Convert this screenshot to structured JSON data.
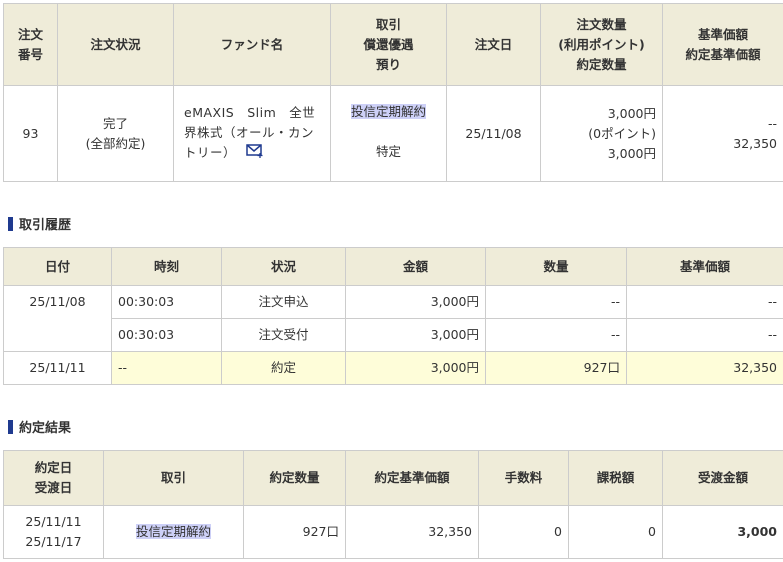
{
  "order": {
    "headers": [
      "注文\n番号",
      "注文状況",
      "ファンド名",
      "取引\n償還優遇\n預り",
      "注文日",
      "注文数量\n(利用ポイント)\n約定数量",
      "基準価額\n約定基準価額"
    ],
    "row": {
      "number": "93",
      "status": "完了",
      "status_detail": "(全部約定)",
      "fund_name": "eMAXIS　Slim　全世界株式（オール・カントリー）",
      "fund_icon": "mail-plus-icon",
      "trade": "投信定期解約",
      "account": "特定",
      "order_date": "25/11/08",
      "quantity": "3,000円",
      "points": "(0ポイント)",
      "executed_quantity": "3,000円",
      "base_price": "--",
      "executed_base_price": "32,350"
    }
  },
  "history": {
    "title": "取引履歴",
    "headers": [
      "日付",
      "時刻",
      "状況",
      "金額",
      "数量",
      "基準価額"
    ],
    "rows": [
      {
        "date": "25/11/08",
        "time": "00:30:03",
        "status": "注文申込",
        "amount": "3,000円",
        "qty": "--",
        "price": "--"
      },
      {
        "date": "",
        "time": "00:30:03",
        "status": "注文受付",
        "amount": "3,000円",
        "qty": "--",
        "price": "--"
      },
      {
        "date": "25/11/11",
        "time": "--",
        "status": "約定",
        "amount": "3,000円",
        "qty": "927口",
        "price": "32,350"
      }
    ]
  },
  "result": {
    "title": "約定結果",
    "headers": [
      "約定日\n受渡日",
      "取引",
      "約定数量",
      "約定基準価額",
      "手数料",
      "課税額",
      "受渡金額"
    ],
    "row": {
      "trade_date": "25/11/11",
      "settle_date": "25/11/17",
      "trade": "投信定期解約",
      "qty": "927口",
      "price": "32,350",
      "fee": "0",
      "tax": "0",
      "amount": "3,000"
    }
  },
  "colors": {
    "header_bg": "#efecd9",
    "highlight_row": "#fefdd9",
    "trade_highlight": "#cdd0f7",
    "section_bar": "#1f3a8f"
  }
}
